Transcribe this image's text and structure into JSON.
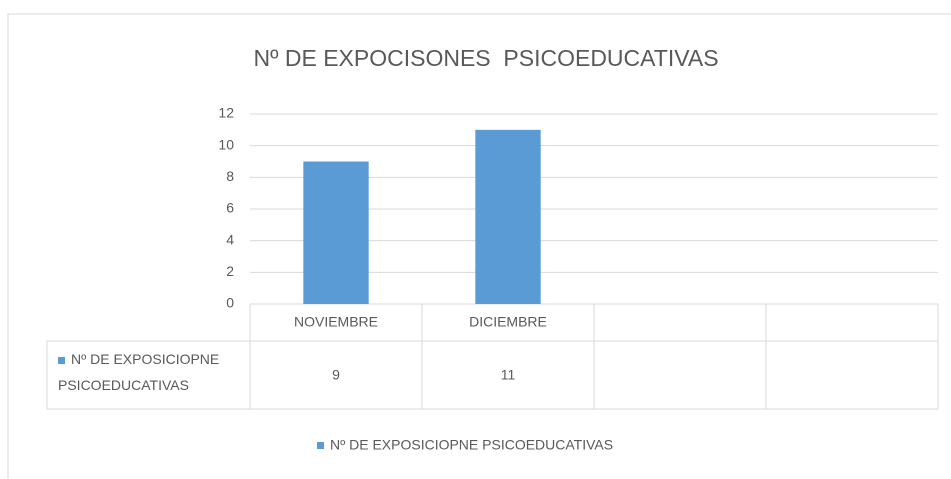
{
  "chart_data": {
    "type": "bar",
    "title": "Nº DE EXPOCISONES  PSICOEDUCATIVAS",
    "categories": [
      "NOVIEMBRE",
      "DICIEMBRE",
      null,
      null
    ],
    "series": [
      {
        "name": "Nº DE EXPOSICIOPNE PSICOEDUCATIVAS",
        "color": "#5b9bd5",
        "values": [
          9,
          11,
          null,
          null
        ]
      }
    ],
    "ylim": [
      0,
      12
    ],
    "yticks": [
      0,
      2,
      4,
      6,
      8,
      10,
      12
    ],
    "grid": true,
    "legend": "bottom",
    "data_table": true
  }
}
